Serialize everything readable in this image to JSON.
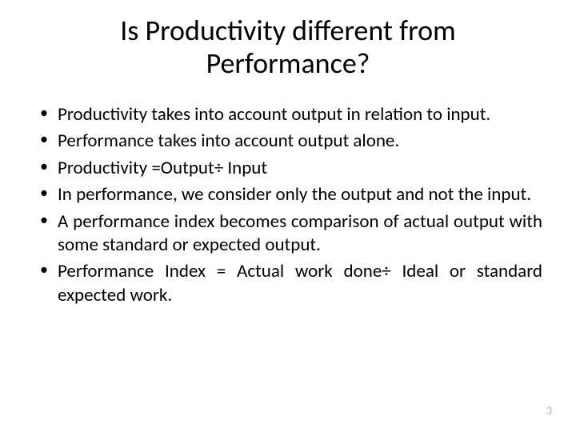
{
  "title": "Is Productivity different from Performance?",
  "bullets": [
    "Productivity takes into account output in relation to input.",
    "Performance takes into account output alone.",
    "Productivity =Output÷ Input",
    "In performance, we consider only the output and not the input.",
    "A performance index becomes comparison of actual output with some standard  or expected output.",
    "Performance Index = Actual work done÷ Ideal or standard expected work."
  ],
  "pageNumber": "3",
  "colors": {
    "background": "#ffffff",
    "text": "#000000",
    "pageNumberColor": "#b7b7b7"
  },
  "typography": {
    "titleFontSize": 36,
    "bodyFontSize": 23,
    "pageNumberFontSize": 14,
    "fontFamily": "Calibri"
  }
}
